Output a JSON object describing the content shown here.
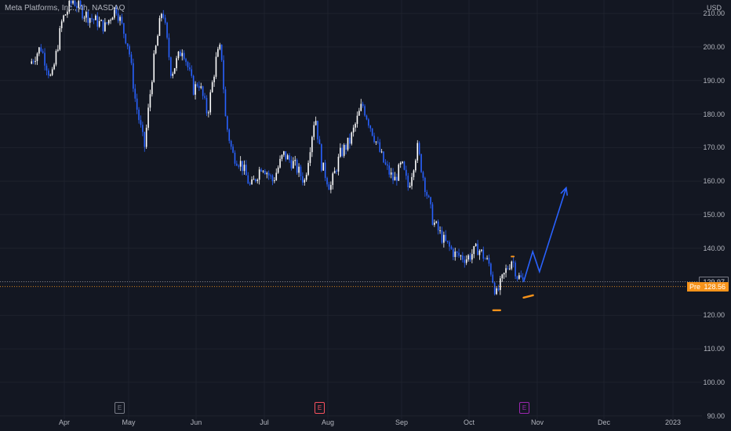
{
  "header": {
    "title": "Meta Platforms, Inc., 4h, NASDAQ",
    "currency": "USD"
  },
  "price_tags": {
    "last": "129.97",
    "pre_label": "Pre",
    "pre": "128.56"
  },
  "events": [
    {
      "label": "E",
      "date": "May",
      "color": "#787b86"
    },
    {
      "label": "E",
      "date": "Jul-end",
      "color": "#f7525f"
    },
    {
      "label": "E",
      "date": "Oct-end",
      "color": "#9c27b0"
    }
  ],
  "colors": {
    "background": "#131722",
    "candle_up": "#ffffff",
    "candle_down": "#2962ff",
    "projection": "#2962ff",
    "marker": "#f7931a",
    "last_line": "#9598a1",
    "pre_line": "#f7931a"
  },
  "chart_data": {
    "type": "candlestick",
    "title": "Meta Platforms, Inc., 4h, NASDAQ",
    "ylabel": "USD",
    "ylim": [
      89,
      214
    ],
    "y_ticks": [
      "210.00",
      "200.00",
      "190.00",
      "180.00",
      "170.00",
      "160.00",
      "150.00",
      "140.00",
      "130.00",
      "120.00",
      "110.00",
      "100.00",
      "90.00"
    ],
    "x_ticks": [
      "Apr",
      "May",
      "Jun",
      "Jul",
      "Aug",
      "Sep",
      "Oct",
      "Nov",
      "Dec",
      "2023"
    ],
    "price_path": [
      [
        "Mar-15",
        195
      ],
      [
        "Mar-20",
        200
      ],
      [
        "Mar-25",
        190
      ],
      [
        "Mar-30",
        208
      ],
      [
        "Apr-5",
        214
      ],
      [
        "Apr-10",
        210
      ],
      [
        "Apr-20",
        206
      ],
      [
        "Apr-25",
        212
      ],
      [
        "May-1",
        200
      ],
      [
        "May-4",
        184
      ],
      [
        "May-8",
        170
      ],
      [
        "May-12",
        195
      ],
      [
        "May-16",
        212
      ],
      [
        "May-20",
        192
      ],
      [
        "May-25",
        200
      ],
      [
        "May-30",
        187
      ],
      [
        "Jun-2",
        190
      ],
      [
        "Jun-6",
        180
      ],
      [
        "Jun-10",
        197
      ],
      [
        "Jun-12",
        200
      ],
      [
        "Jun-14",
        178
      ],
      [
        "Jun-17",
        168
      ],
      [
        "Jun-21",
        165
      ],
      [
        "Jun-25",
        158
      ],
      [
        "Jun-30",
        165
      ],
      [
        "Jul-5",
        160
      ],
      [
        "Jul-10",
        168
      ],
      [
        "Jul-15",
        165
      ],
      [
        "Jul-20",
        160
      ],
      [
        "Jul-25",
        180
      ],
      [
        "Jul-28",
        165
      ],
      [
        "Aug-2",
        158
      ],
      [
        "Aug-6",
        168
      ],
      [
        "Aug-10",
        172
      ],
      [
        "Aug-15",
        183
      ],
      [
        "Aug-19",
        175
      ],
      [
        "Aug-24",
        165
      ],
      [
        "Aug-28",
        160
      ],
      [
        "Sep-1",
        165
      ],
      [
        "Sep-4",
        158
      ],
      [
        "Sep-8",
        170
      ],
      [
        "Sep-11",
        160
      ],
      [
        "Sep-15",
        148
      ],
      [
        "Sep-20",
        142
      ],
      [
        "Sep-25",
        138
      ],
      [
        "Sep-30",
        137
      ],
      [
        "Oct-5",
        140
      ],
      [
        "Oct-10",
        135
      ],
      [
        "Oct-13",
        126
      ],
      [
        "Oct-17",
        133
      ],
      [
        "Oct-20",
        137
      ],
      [
        "Oct-22",
        132
      ],
      [
        "Oct-25",
        129.97
      ]
    ],
    "projection_path": [
      [
        "Oct-25",
        129.97
      ],
      [
        "Oct-29",
        139
      ],
      [
        "Nov-2",
        133
      ],
      [
        "Nov-14",
        158
      ]
    ],
    "series": [
      {
        "values_last_close": 129.97
      },
      {
        "values_premarket": 128.56
      }
    ],
    "horizontal_lines": [
      {
        "value": 129.97,
        "style": "dotted"
      },
      {
        "value": 128.56,
        "style": "dotted"
      }
    ],
    "grid": true
  }
}
